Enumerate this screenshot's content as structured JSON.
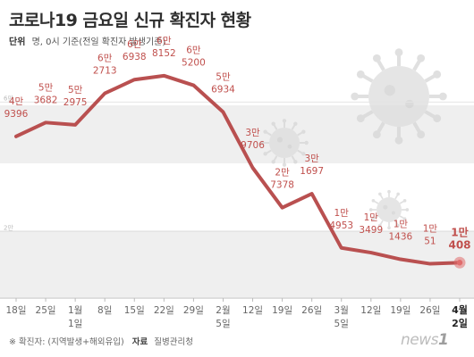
{
  "title": "코로나19 금요일 신규 확진자 현황",
  "unit": {
    "label": "단위",
    "text": "명, 0시 기준(전일 확진자 발생기준)"
  },
  "chart_data": {
    "type": "line",
    "x": [
      "2020-12-18",
      "2020-12-25",
      "2021-01-01",
      "2021-01-08",
      "2021-01-15",
      "2021-01-22",
      "2021-01-29",
      "2021-02-05",
      "2021-02-12",
      "2021-02-19",
      "2021-02-26",
      "2021-03-05",
      "2021-03-12",
      "2021-03-19",
      "2021-03-26",
      "2021-04-02"
    ],
    "tick_labels": [
      "18일",
      "25일",
      "1월\n1일",
      "8일",
      "15일",
      "22일",
      "29일",
      "2월\n5일",
      "12일",
      "19일",
      "26일",
      "3월\n5일",
      "12일",
      "19일",
      "26일",
      "4월\n2일"
    ],
    "values": [
      49396,
      53682,
      52975,
      62713,
      66938,
      68152,
      65200,
      56934,
      39706,
      27378,
      31697,
      14953,
      13499,
      11436,
      10051,
      10408
    ],
    "point_labels": [
      [
        "4만",
        "9396"
      ],
      [
        "5만",
        "3682"
      ],
      [
        "5만",
        "2975"
      ],
      [
        "6만",
        "2713"
      ],
      [
        "6만",
        "6938"
      ],
      [
        "6만",
        "8152"
      ],
      [
        "6만",
        "5200"
      ],
      [
        "5만",
        "6934"
      ],
      [
        "3만",
        "9706"
      ],
      [
        "2만",
        "7378"
      ],
      [
        "3만",
        "1697"
      ],
      [
        "1만",
        "4953"
      ],
      [
        "1만",
        "3499"
      ],
      [
        "1만",
        "1436"
      ],
      [
        "1만",
        "51"
      ],
      [
        "1만",
        "408"
      ]
    ],
    "highlight_index": 15,
    "ylim": [
      0,
      75000
    ],
    "reference_lines": [
      {
        "label": "6만",
        "value": 60000
      },
      {
        "label": "2만",
        "value": 20000
      }
    ],
    "colors": {
      "line": "#b95050",
      "highlight": "#e06c6c",
      "label": "#c0504d",
      "band": "#efefef"
    }
  },
  "footnote": {
    "note": "※ 확진자: (지역발생+해외유입)",
    "source_label": "자료",
    "source": "질병관리청"
  },
  "logo": {
    "text": "news",
    "mark": "1"
  }
}
